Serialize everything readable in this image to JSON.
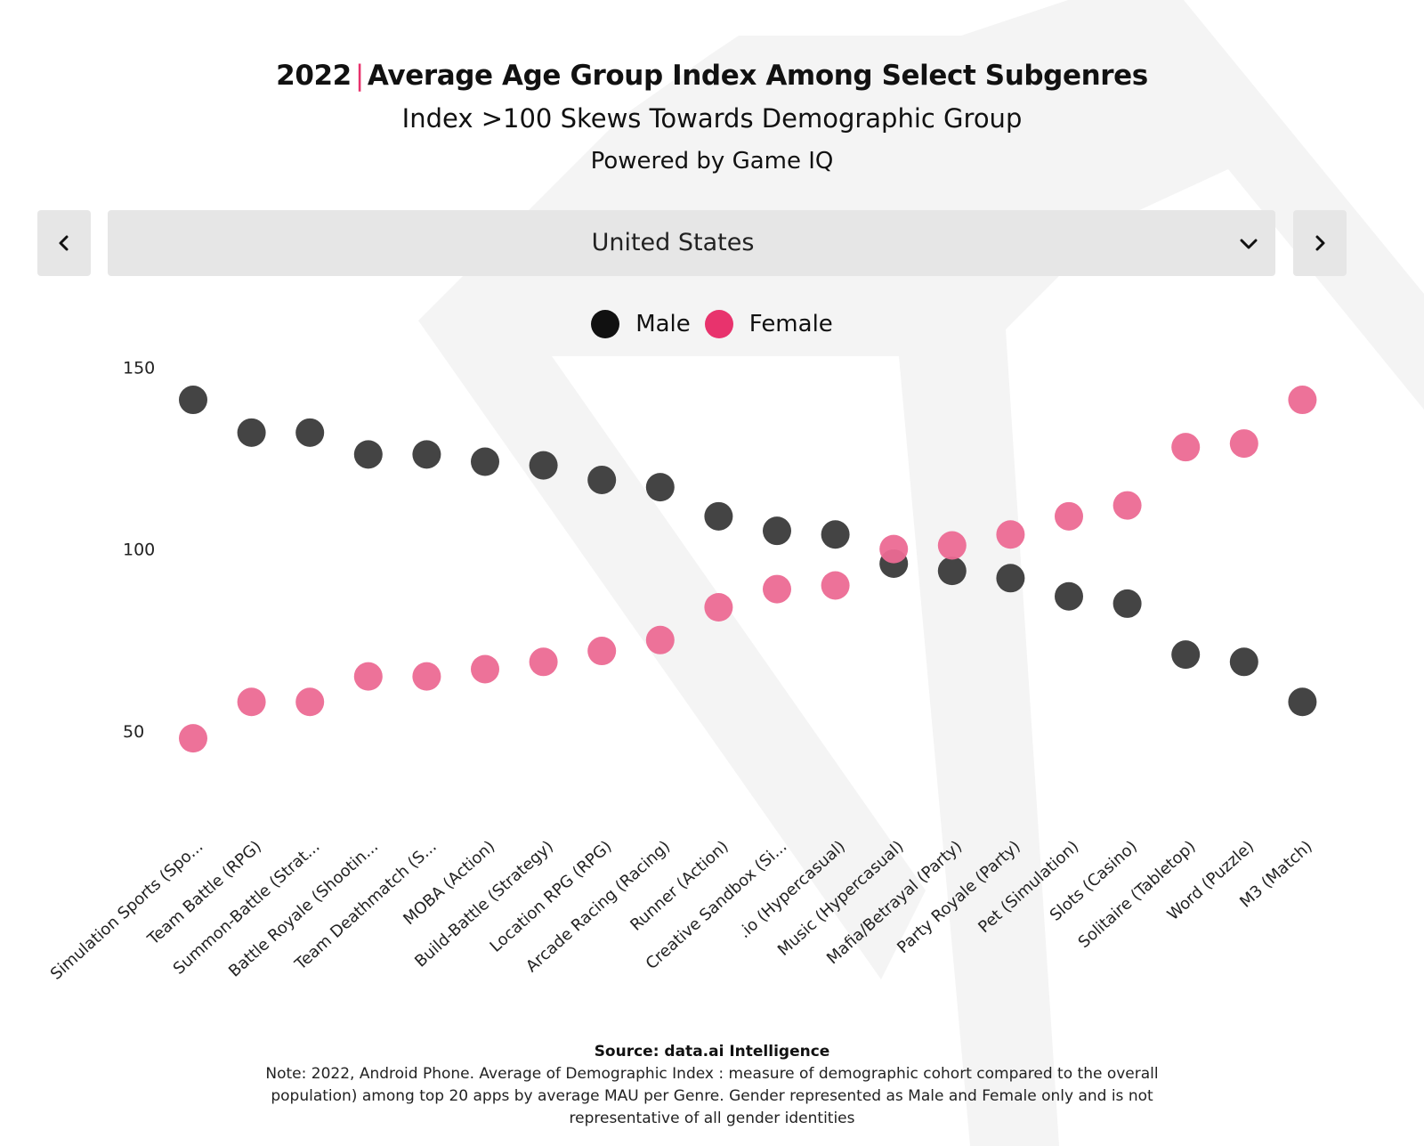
{
  "header": {
    "title_year": "2022",
    "title_separator": "|",
    "title_text": "Average Age Group Index Among Select Subgenres",
    "subtitle": "Index  >100 Skews Towards Demographic Group",
    "powered_by": "Powered by Game IQ"
  },
  "controls": {
    "prev_icon": "chevron-left-icon",
    "next_icon": "chevron-right-icon",
    "country_selected": "United States",
    "dropdown_icon": "chevron-down-icon"
  },
  "legend": {
    "male": "Male",
    "female": "Female"
  },
  "colors": {
    "male_legend": "#111111",
    "male_marker": "#3a3a3a",
    "female_legend": "#e8336d",
    "female_marker": "#ec6a94",
    "title_accent": "#e8336d"
  },
  "chart_data": {
    "type": "scatter",
    "categories": [
      "Simulation Sports (Spo...",
      "Team Battle (RPG)",
      "Summon-Battle (Strat...",
      "Battle Royale (Shootin...",
      "Team Deathmatch (S...",
      "MOBA (Action)",
      "Build-Battle (Strategy)",
      "Location RPG (RPG)",
      "Arcade Racing (Racing)",
      "Runner (Action)",
      "Creative Sandbox (Si...",
      ".io (Hypercasual)",
      "Music (Hypercasual)",
      "Mafia/Betrayal (Party)",
      "Party Royale (Party)",
      "Pet (Simulation)",
      "Slots (Casino)",
      "Solitaire (Tabletop)",
      "Word (Puzzle)",
      "M3 (Match)"
    ],
    "series": [
      {
        "name": "Male",
        "values": [
          141,
          132,
          132,
          126,
          126,
          124,
          123,
          119,
          117,
          109,
          105,
          104,
          96,
          94,
          92,
          87,
          85,
          71,
          69,
          58
        ]
      },
      {
        "name": "Female",
        "values": [
          48,
          58,
          58,
          65,
          65,
          67,
          69,
          72,
          75,
          84,
          89,
          90,
          100,
          101,
          104,
          109,
          112,
          128,
          129,
          141
        ]
      }
    ],
    "yticks": [
      50,
      100,
      150
    ],
    "ylim": [
      38,
      153
    ],
    "legend_position": "top-center",
    "grid": false
  },
  "footer": {
    "source": "Source: data.ai Intelligence",
    "note": "Note: 2022, Android Phone. Average of Demographic  Index  : measure of demographic cohort compared to the overall population) among top 20 apps by average MAU per Genre. Gender represented as Male and Female only and is not representative of all gender identities"
  }
}
